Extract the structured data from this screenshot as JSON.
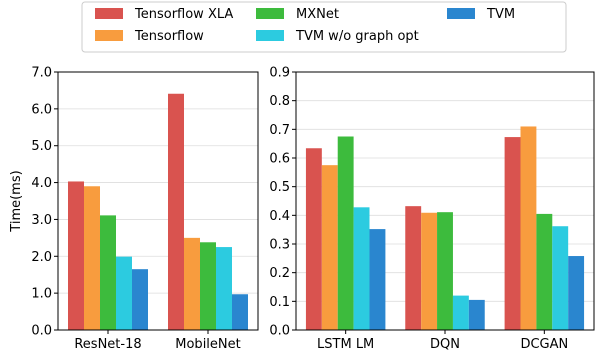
{
  "legend": {
    "items": [
      {
        "name": "Tensorflow XLA",
        "color": "#d9534f"
      },
      {
        "name": "Tensorflow",
        "color": "#f89c3e"
      },
      {
        "name": "MXNet",
        "color": "#3dbb3d"
      },
      {
        "name": "TVM w/o graph opt",
        "color": "#2ccbe0"
      },
      {
        "name": "TVM",
        "color": "#2a86cf"
      }
    ]
  },
  "chart_data": [
    {
      "type": "bar",
      "ylabel": "Time(ms)",
      "ylim": [
        0,
        7
      ],
      "yticks": [
        "0.0",
        "1.0",
        "2.0",
        "3.0",
        "4.0",
        "5.0",
        "6.0",
        "7.0"
      ],
      "grid": "horizontal",
      "categories": [
        "ResNet-18",
        "MobileNet"
      ],
      "series": [
        {
          "name": "Tensorflow XLA",
          "values": [
            4.03,
            6.41
          ]
        },
        {
          "name": "Tensorflow",
          "values": [
            3.9,
            2.5
          ]
        },
        {
          "name": "MXNet",
          "values": [
            3.11,
            2.38
          ]
        },
        {
          "name": "TVM w/o graph opt",
          "values": [
            1.99,
            2.25
          ]
        },
        {
          "name": "TVM",
          "values": [
            1.65,
            0.97
          ]
        }
      ]
    },
    {
      "type": "bar",
      "ylim": [
        0,
        0.9
      ],
      "yticks": [
        "0.0",
        "0.1",
        "0.2",
        "0.3",
        "0.4",
        "0.5",
        "0.6",
        "0.7",
        "0.8",
        "0.9"
      ],
      "grid": "horizontal",
      "categories": [
        "LSTM LM",
        "DQN",
        "DCGAN"
      ],
      "series": [
        {
          "name": "Tensorflow XLA",
          "values": [
            0.634,
            0.432,
            0.673
          ]
        },
        {
          "name": "Tensorflow",
          "values": [
            0.575,
            0.409,
            0.71
          ]
        },
        {
          "name": "MXNet",
          "values": [
            0.675,
            0.411,
            0.405
          ]
        },
        {
          "name": "TVM w/o graph opt",
          "values": [
            0.428,
            0.12,
            0.362
          ]
        },
        {
          "name": "TVM",
          "values": [
            0.352,
            0.105,
            0.258
          ]
        }
      ]
    }
  ]
}
